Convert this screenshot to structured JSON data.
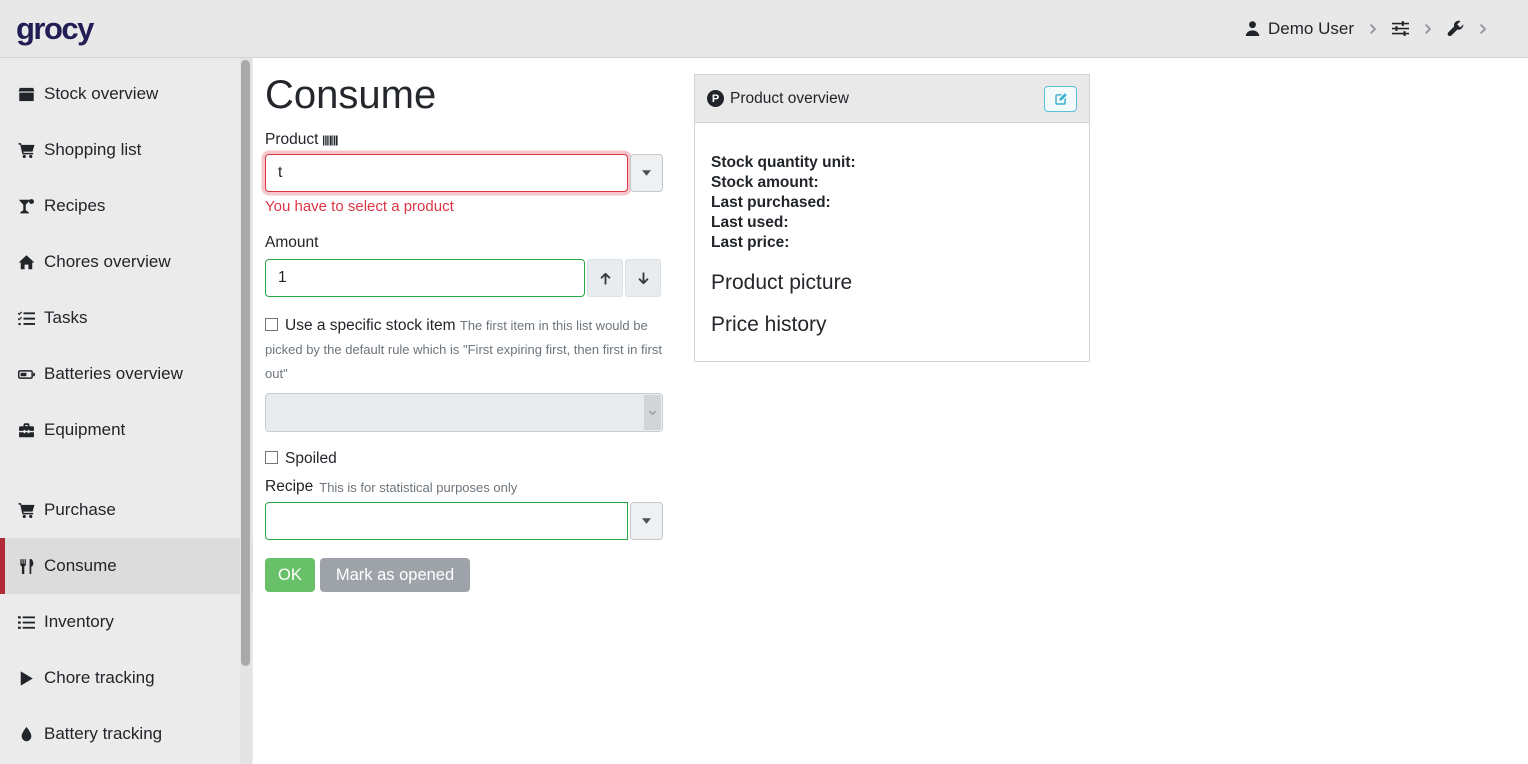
{
  "navbar": {
    "logo": "grocy",
    "user_label": "Demo User"
  },
  "sidebar": {
    "items": [
      {
        "label": "Stock overview",
        "icon": "box-icon"
      },
      {
        "label": "Shopping list",
        "icon": "cart-icon"
      },
      {
        "label": "Recipes",
        "icon": "cocktail-icon"
      },
      {
        "label": "Chores overview",
        "icon": "home-icon"
      },
      {
        "label": "Tasks",
        "icon": "tasks-icon"
      },
      {
        "label": "Batteries overview",
        "icon": "battery-icon"
      },
      {
        "label": "Equipment",
        "icon": "toolbox-icon"
      },
      {
        "spacer": true
      },
      {
        "label": "Purchase",
        "icon": "cart-icon"
      },
      {
        "label": "Consume",
        "icon": "utensils-icon",
        "active": true
      },
      {
        "label": "Inventory",
        "icon": "list-icon"
      },
      {
        "label": "Chore tracking",
        "icon": "play-icon"
      },
      {
        "label": "Battery tracking",
        "icon": "droplet-icon"
      }
    ]
  },
  "main": {
    "title": "Consume",
    "product": {
      "label": "Product",
      "value": "t",
      "error": "You have to select a product"
    },
    "amount": {
      "label": "Amount",
      "value": "1"
    },
    "specific_stock": {
      "label": "Use a specific stock item",
      "hint": "The first item in this list would be picked by the default rule which is \"First expiring first, then first in first out\""
    },
    "spoiled_label": "Spoiled",
    "recipe": {
      "label": "Recipe",
      "hint": "This is for statistical purposes only",
      "value": ""
    },
    "ok_label": "OK",
    "mark_opened_label": "Mark as opened"
  },
  "product_overview": {
    "title": "Product overview",
    "badge": "P",
    "fields": [
      "Stock quantity unit:",
      "Stock amount:",
      "Last purchased:",
      "Last used:",
      "Last price:"
    ],
    "sections": [
      "Product picture",
      "Price history"
    ]
  },
  "colors": {
    "brand": "#221d54",
    "active_red": "#b02a37",
    "success_green": "#68c168",
    "danger_red": "#dc3545",
    "info_cyan": "#5bc0de",
    "muted": "#6c757d"
  }
}
